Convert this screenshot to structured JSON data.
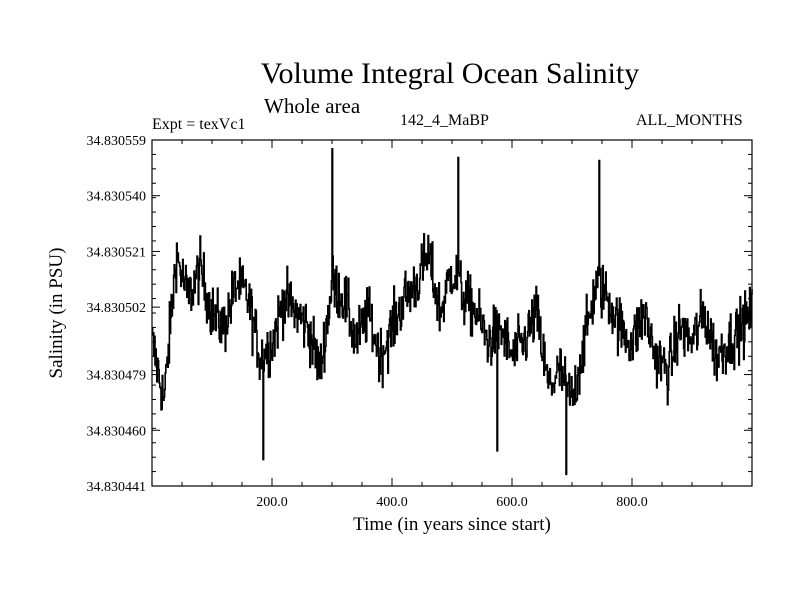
{
  "chart_data": {
    "type": "line",
    "title": "Volume Integral Ocean Salinity",
    "subtitle": "Whole area",
    "experiment": "Expt = texVc1",
    "period": "142_4_MaBP",
    "months": "ALL_MONTHS",
    "xlabel": "Time (in years since start)",
    "ylabel": "Salinity (in PSU)",
    "xlim": [
      0,
      1000
    ],
    "ylim": [
      34.830441,
      34.830559
    ],
    "xticks": [
      200,
      400,
      600,
      800
    ],
    "xtick_labels": [
      "200.0",
      "400.0",
      "600.0",
      "800.0"
    ],
    "yticks": [
      34.830441,
      34.83046,
      34.830479,
      34.830502,
      34.830521,
      34.83054,
      34.830559
    ],
    "ytick_labels": [
      "34.830441",
      "34.830460",
      "34.830479",
      "34.830502",
      "34.830521",
      "34.830540",
      "34.830559"
    ],
    "series": [
      {
        "name": "Salinity",
        "x": [
          0,
          20,
          40,
          60,
          80,
          100,
          120,
          140,
          160,
          180,
          200,
          220,
          240,
          260,
          280,
          300,
          320,
          340,
          360,
          380,
          400,
          420,
          440,
          460,
          480,
          500,
          520,
          540,
          560,
          580,
          600,
          620,
          640,
          660,
          680,
          700,
          720,
          740,
          760,
          780,
          800,
          820,
          840,
          860,
          880,
          900,
          920,
          940,
          960,
          980,
          1000
        ],
        "values": [
          34.83049,
          34.83047,
          34.83052,
          34.830505,
          34.830515,
          34.8305,
          34.830495,
          34.83051,
          34.830505,
          34.830485,
          34.83049,
          34.830505,
          34.8305,
          34.830495,
          34.83048,
          34.83051,
          34.830505,
          34.83049,
          34.8305,
          34.830485,
          34.830495,
          34.830505,
          34.83051,
          34.83052,
          34.8305,
          34.830515,
          34.830505,
          34.8305,
          34.83049,
          34.830495,
          34.830485,
          34.83049,
          34.8305,
          34.830475,
          34.83048,
          34.83047,
          34.83049,
          34.83051,
          34.830505,
          34.830495,
          34.83049,
          34.8305,
          34.830485,
          34.83048,
          34.830495,
          34.83049,
          34.8305,
          34.830485,
          34.83049,
          34.830495,
          34.8305
        ],
        "annotated_extremes": [
          {
            "x": 300,
            "value": 34.830556
          },
          {
            "x": 510,
            "value": 34.830553
          },
          {
            "x": 745,
            "value": 34.830552
          },
          {
            "x": 690,
            "value": 34.830445
          },
          {
            "x": 185,
            "value": 34.83045
          },
          {
            "x": 575,
            "value": 34.830453
          }
        ]
      }
    ]
  }
}
